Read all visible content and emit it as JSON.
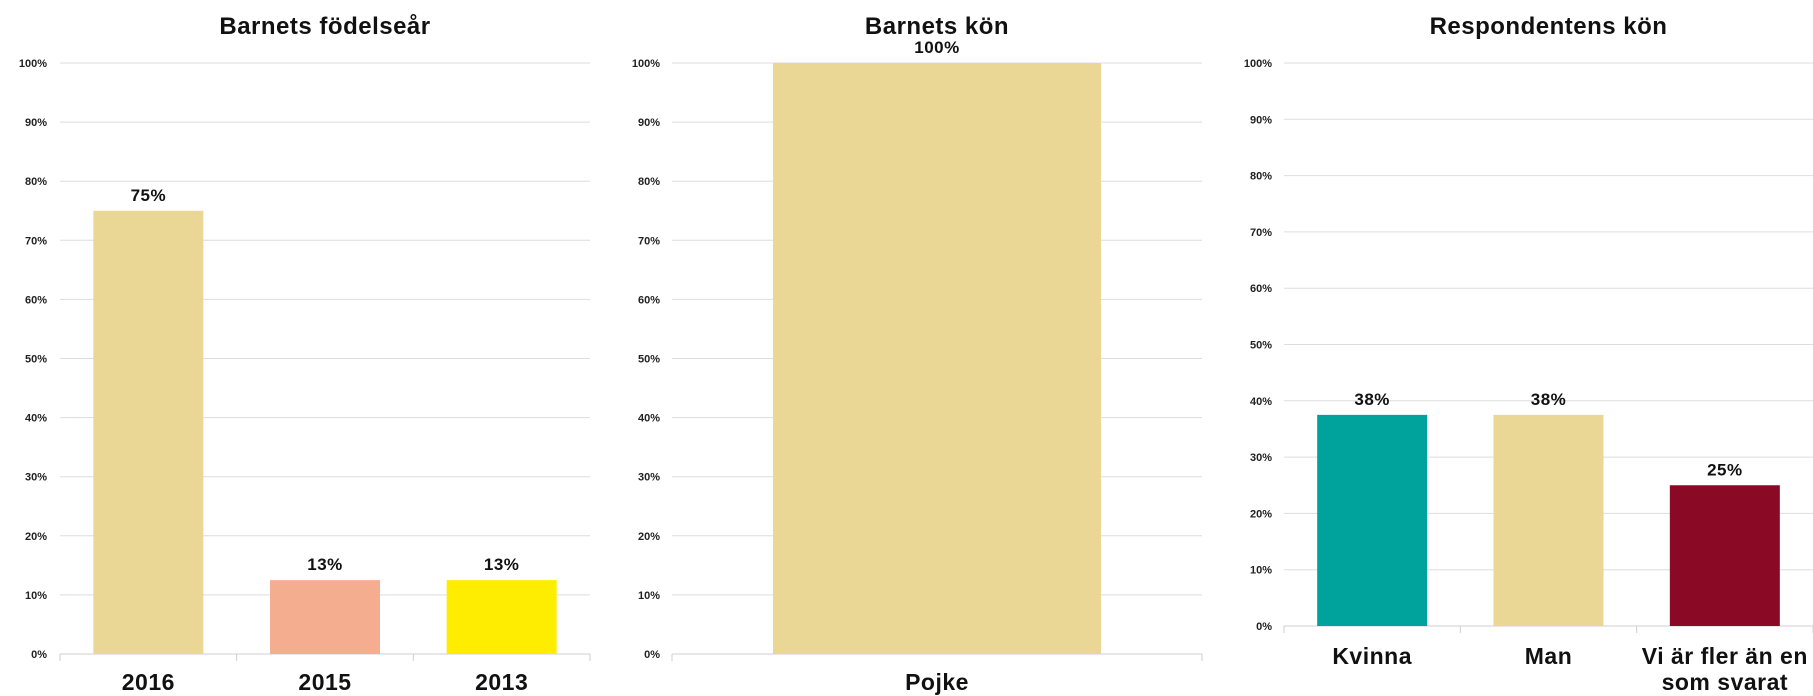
{
  "chart_data": [
    {
      "type": "bar",
      "title": "Barnets födelseår",
      "categories": [
        "2016",
        "2015",
        "2013"
      ],
      "values": [
        75,
        12.5,
        12.5
      ],
      "labels": [
        "75%",
        "13%",
        "13%"
      ],
      "colors": [
        "#ead795",
        "#f5ad90",
        "#ffed00"
      ],
      "ylim": [
        0,
        100
      ],
      "yticks": [
        "0%",
        "10%",
        "20%",
        "30%",
        "40%",
        "50%",
        "60%",
        "70%",
        "80%",
        "90%",
        "100%"
      ],
      "grid": true
    },
    {
      "type": "bar",
      "title": "Barnets kön",
      "categories": [
        "Pojke"
      ],
      "values": [
        100
      ],
      "labels": [
        "100%"
      ],
      "colors": [
        "#ead795"
      ],
      "ylim": [
        0,
        100
      ],
      "yticks": [
        "0%",
        "10%",
        "20%",
        "30%",
        "40%",
        "50%",
        "60%",
        "70%",
        "80%",
        "90%",
        "100%"
      ],
      "grid": true
    },
    {
      "type": "bar",
      "title": "Respondentens kön",
      "categories": [
        "Kvinna",
        "Man",
        "Vi är fler än en som svarat"
      ],
      "category_lines": [
        [
          "Kvinna"
        ],
        [
          "Man"
        ],
        [
          "Vi är fler än en",
          "som svarat"
        ]
      ],
      "values": [
        37.5,
        37.5,
        25
      ],
      "labels": [
        "38%",
        "38%",
        "25%"
      ],
      "colors": [
        "#00a39b",
        "#ead795",
        "#8a0a26"
      ],
      "ylim": [
        0,
        100
      ],
      "yticks": [
        "0%",
        "10%",
        "20%",
        "30%",
        "40%",
        "50%",
        "60%",
        "70%",
        "80%",
        "90%",
        "100%"
      ],
      "grid": true
    }
  ]
}
